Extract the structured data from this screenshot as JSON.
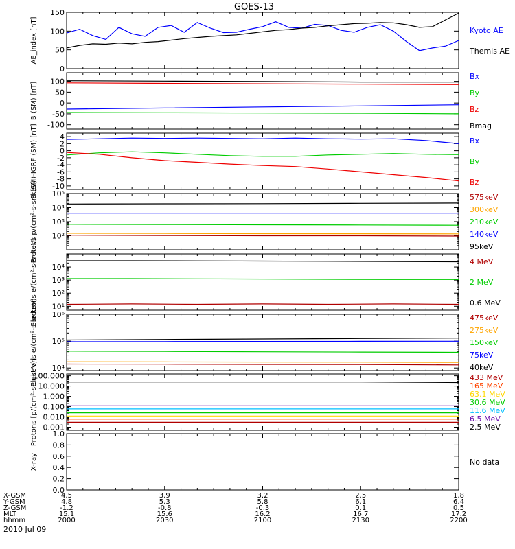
{
  "title": "GOES-13",
  "date": "2010 Jul 09",
  "orbit": {
    "row_labels": [
      "X-GSM",
      "Y-GSM",
      "Z-GSM",
      "MLT",
      "hhmm"
    ],
    "columns": [
      [
        "4.5",
        "4.8",
        "-1.2",
        "15.1",
        "2000"
      ],
      [
        "3.9",
        "5.3",
        "-0.8",
        "15.6",
        "2030"
      ],
      [
        "3.2",
        "5.8",
        "-0.3",
        "16.2",
        "2100"
      ],
      [
        "2.5",
        "6.1",
        "0.1",
        "16.7",
        "2130"
      ],
      [
        "1.8",
        "6.4",
        "0.5",
        "17.2",
        "2200"
      ]
    ]
  },
  "chart_data": [
    {
      "type": "line",
      "ylabel": "AE_index [nT]",
      "scale": "linear",
      "ylim": [
        0,
        150
      ],
      "y_ticks": [
        {
          "v": 0,
          "l": "0"
        },
        {
          "v": 50,
          "l": "50"
        },
        {
          "v": 100,
          "l": "100"
        },
        {
          "v": 150,
          "l": "150"
        }
      ],
      "x": [
        0,
        4,
        8,
        12,
        16,
        20,
        24,
        28,
        32,
        36,
        40,
        44,
        48,
        52,
        56,
        60,
        64,
        68,
        72,
        76,
        80,
        84,
        88,
        92,
        96,
        100,
        104,
        108,
        112,
        116,
        120
      ],
      "series": [
        {
          "name": "Kyoto AE",
          "color": "#0000ff",
          "values": [
            95,
            105,
            88,
            78,
            110,
            93,
            86,
            110,
            115,
            97,
            123,
            108,
            96,
            97,
            105,
            112,
            125,
            110,
            108,
            118,
            115,
            102,
            97,
            110,
            117,
            100,
            72,
            48,
            55,
            60,
            75
          ]
        },
        {
          "name": "Themis AE",
          "color": "#000000",
          "values": [
            55,
            62,
            66,
            65,
            68,
            66,
            70,
            72,
            76,
            80,
            83,
            86,
            88,
            90,
            94,
            98,
            102,
            104,
            108,
            110,
            114,
            117,
            120,
            121,
            123,
            122,
            117,
            110,
            112,
            130,
            148
          ]
        }
      ]
    },
    {
      "type": "line",
      "ylabel": "B (SM) [nT]",
      "scale": "linear",
      "ylim": [
        -120,
        140
      ],
      "y_ticks": [
        {
          "v": -100,
          "l": "-100"
        },
        {
          "v": -50,
          "l": "-50"
        },
        {
          "v": 0,
          "l": "0"
        },
        {
          "v": 50,
          "l": "50"
        },
        {
          "v": 100,
          "l": "100"
        }
      ],
      "x": [
        0,
        30,
        60,
        90,
        120
      ],
      "series": [
        {
          "name": "Bx",
          "color": "#0000ff",
          "values": [
            -28,
            -23,
            -18,
            -13,
            -8
          ]
        },
        {
          "name": "By",
          "color": "#00cc00",
          "values": [
            -44,
            -45,
            -46,
            -47,
            -50
          ]
        },
        {
          "name": "Bz",
          "color": "#ee0000",
          "values": [
            93,
            91,
            89,
            87,
            85
          ]
        },
        {
          "name": "Bmag",
          "color": "#000000",
          "values": [
            103,
            101,
            99,
            97,
            97
          ]
        }
      ]
    },
    {
      "type": "line",
      "ylabel": "B (SM)-IGRF (SM) [nT]",
      "scale": "linear",
      "ylim": [
        -11,
        5
      ],
      "y_ticks": [
        {
          "v": -10,
          "l": "-10"
        },
        {
          "v": -8,
          "l": "-8"
        },
        {
          "v": -6,
          "l": "-6"
        },
        {
          "v": -4,
          "l": "-4"
        },
        {
          "v": -2,
          "l": "-2"
        },
        {
          "v": 0,
          "l": "0"
        },
        {
          "v": 2,
          "l": "2"
        },
        {
          "v": 4,
          "l": "4"
        }
      ],
      "x": [
        0,
        10,
        20,
        30,
        40,
        50,
        60,
        70,
        80,
        90,
        100,
        110,
        120
      ],
      "series": [
        {
          "name": "Bx",
          "color": "#0000ff",
          "values": [
            3.2,
            3.4,
            3.6,
            3.5,
            3.6,
            3.5,
            3.4,
            3.6,
            3.4,
            3.3,
            3.4,
            2.9,
            2.0
          ]
        },
        {
          "name": "By",
          "color": "#00cc00",
          "values": [
            -1.2,
            -0.6,
            -0.3,
            -0.6,
            -1.0,
            -1.4,
            -1.6,
            -1.6,
            -1.2,
            -1.0,
            -0.8,
            -1.0,
            -1.1
          ]
        },
        {
          "name": "Bz",
          "color": "#ee0000",
          "values": [
            -0.5,
            -1.0,
            -2.0,
            -2.8,
            -3.3,
            -3.8,
            -4.2,
            -4.5,
            -5.2,
            -6.0,
            -6.8,
            -7.6,
            -8.6
          ]
        }
      ]
    },
    {
      "type": "line",
      "ylabel": "Protons p/(cm²-s-sr-keV)",
      "scale": "log",
      "ylim": [
        10,
        100000
      ],
      "y_ticks": [
        {
          "v": 100,
          "l": "10²"
        },
        {
          "v": 1000,
          "l": "10³"
        },
        {
          "v": 10000,
          "l": "10⁴"
        },
        {
          "v": 100000,
          "l": "10⁵"
        }
      ],
      "x": [
        0,
        30,
        60,
        90,
        120
      ],
      "series": [
        {
          "name": "575keV",
          "color": "#b00000",
          "values": [
            110,
            105,
            100,
            100,
            95
          ]
        },
        {
          "name": "300keV",
          "color": "#ffa500",
          "values": [
            150,
            145,
            140,
            138,
            135
          ]
        },
        {
          "name": "210keV",
          "color": "#00cc00",
          "values": [
            650,
            630,
            600,
            580,
            560
          ]
        },
        {
          "name": "140keV",
          "color": "#0000ff",
          "values": [
            4000,
            4000,
            4000,
            4000,
            4000
          ]
        },
        {
          "name": "95keV",
          "color": "#000000",
          "values": [
            18000,
            18500,
            19000,
            20000,
            21000
          ]
        }
      ]
    },
    {
      "type": "line",
      "ylabel": "Electrons e/(cm²-s-sr-keV)",
      "scale": "log",
      "ylim": [
        5,
        100000
      ],
      "y_ticks": [
        {
          "v": 10,
          "l": "10¹"
        },
        {
          "v": 100,
          "l": "10²"
        },
        {
          "v": 1000,
          "l": "10³"
        },
        {
          "v": 10000,
          "l": "10⁴"
        }
      ],
      "x": [
        0,
        20,
        40,
        60,
        80,
        100,
        120
      ],
      "series": [
        {
          "name": "4 MeV",
          "color": "#b00000",
          "values": [
            14,
            15,
            14,
            15,
            14,
            15,
            14
          ]
        },
        {
          "name": "2 MeV",
          "color": "#00cc00",
          "values": [
            1300,
            1300,
            1250,
            1200,
            1150,
            1100,
            1100
          ]
        },
        {
          "name": "0.6 MeV",
          "color": "#000000",
          "values": [
            30000,
            30000,
            29000,
            28000,
            27000,
            26000,
            25000
          ]
        }
      ]
    },
    {
      "type": "line",
      "ylabel": "Electrons e/(cm²-s-sr-keV)",
      "scale": "log",
      "ylim": [
        8000,
        1000000
      ],
      "y_ticks": [
        {
          "v": 10000,
          "l": "10⁴"
        },
        {
          "v": 100000,
          "l": "10⁵"
        },
        {
          "v": 1000000,
          "l": "10⁶"
        }
      ],
      "x": [
        0,
        30,
        60,
        90,
        120
      ],
      "series": [
        {
          "name": "475keV",
          "color": "#b00000",
          "values": [
            14000,
            13800,
            13600,
            13400,
            13000
          ]
        },
        {
          "name": "275keV",
          "color": "#ffa500",
          "values": [
            17000,
            16800,
            16600,
            16400,
            16000
          ]
        },
        {
          "name": "150keV",
          "color": "#00cc00",
          "values": [
            42000,
            41000,
            40000,
            39000,
            38000
          ]
        },
        {
          "name": "75keV",
          "color": "#0000ff",
          "values": [
            95000,
            96000,
            97000,
            98000,
            99000
          ]
        },
        {
          "name": "40keV",
          "color": "#000000",
          "values": [
            110000,
            115000,
            120000,
            125000,
            130000
          ]
        }
      ]
    },
    {
      "type": "line",
      "ylabel": "Protons [p/(cm²-s-sr-keV)]",
      "scale": "log",
      "ylim": [
        0.0005,
        150
      ],
      "y_ticks": [
        {
          "v": 0.001,
          "l": "0.001"
        },
        {
          "v": 0.01,
          "l": "0.010"
        },
        {
          "v": 0.1,
          "l": "0.100"
        },
        {
          "v": 1,
          "l": "1.000"
        },
        {
          "v": 10,
          "l": "10.000"
        },
        {
          "v": 100,
          "l": "100.000"
        }
      ],
      "x": [
        0,
        30,
        60,
        90,
        120
      ],
      "series": [
        {
          "name": "433 MeV",
          "color": "#b00000",
          "values": [
            0.003,
            0.003,
            0.003,
            0.003,
            0.003
          ]
        },
        {
          "name": "165 MeV",
          "color": "#ff4500",
          "values": [
            0.006,
            0.006,
            0.006,
            0.006,
            0.006
          ]
        },
        {
          "name": "63.1 MeV",
          "color": "#ffd700",
          "values": [
            0.012,
            0.012,
            0.012,
            0.012,
            0.012
          ]
        },
        {
          "name": "30.6 MeV",
          "color": "#00cc00",
          "values": [
            0.025,
            0.025,
            0.025,
            0.025,
            0.025
          ]
        },
        {
          "name": "11.6 MeV",
          "color": "#00bfff",
          "values": [
            0.06,
            0.06,
            0.06,
            0.06,
            0.06
          ]
        },
        {
          "name": "6.5 MeV",
          "color": "#6a0dad",
          "values": [
            0.12,
            0.12,
            0.12,
            0.12,
            0.12
          ]
        },
        {
          "name": "2.5 MeV",
          "color": "#000000",
          "values": [
            25,
            25,
            25,
            25,
            22
          ]
        }
      ]
    },
    {
      "type": "line",
      "ylabel": "X-ray",
      "scale": "linear",
      "ylim": [
        0,
        1
      ],
      "y_ticks": [
        {
          "v": 0,
          "l": "0.0"
        },
        {
          "v": 0.2,
          "l": "0.2"
        },
        {
          "v": 0.4,
          "l": "0.4"
        },
        {
          "v": 0.6,
          "l": "0.6"
        },
        {
          "v": 0.8,
          "l": "0.8"
        },
        {
          "v": 1,
          "l": "1.0"
        }
      ],
      "x": [],
      "series": [],
      "note": "No data"
    }
  ]
}
